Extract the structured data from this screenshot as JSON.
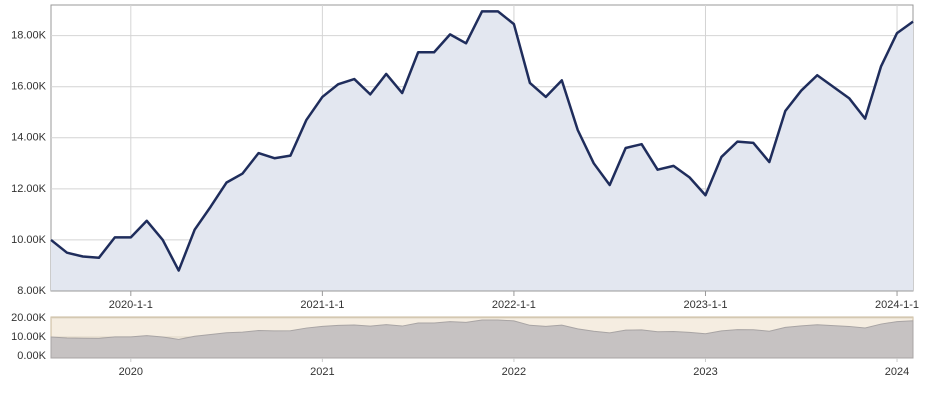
{
  "chart_data": {
    "type": "area",
    "x": [
      "2019-8-1",
      "2019-9-1",
      "2019-10-1",
      "2019-11-1",
      "2019-12-1",
      "2020-1-1",
      "2020-2-1",
      "2020-3-1",
      "2020-4-1",
      "2020-5-1",
      "2020-6-1",
      "2020-7-1",
      "2020-8-1",
      "2020-9-1",
      "2020-10-1",
      "2020-11-1",
      "2020-12-1",
      "2021-1-1",
      "2021-2-1",
      "2021-3-1",
      "2021-4-1",
      "2021-5-1",
      "2021-6-1",
      "2021-7-1",
      "2021-8-1",
      "2021-9-1",
      "2021-10-1",
      "2021-11-1",
      "2021-12-1",
      "2022-1-1",
      "2022-2-1",
      "2022-3-1",
      "2022-4-1",
      "2022-5-1",
      "2022-6-1",
      "2022-7-1",
      "2022-8-1",
      "2022-9-1",
      "2022-10-1",
      "2022-11-1",
      "2022-12-1",
      "2023-1-1",
      "2023-2-1",
      "2023-3-1",
      "2023-4-1",
      "2023-5-1",
      "2023-6-1",
      "2023-7-1",
      "2023-8-1",
      "2023-9-1",
      "2023-10-1",
      "2023-11-1",
      "2023-12-1",
      "2024-1-1",
      "2024-2-1"
    ],
    "values": [
      10000,
      9500,
      9350,
      9300,
      10100,
      10100,
      10750,
      10000,
      8800,
      10400,
      11300,
      12250,
      12600,
      13400,
      13200,
      13300,
      14700,
      15600,
      16100,
      16300,
      15700,
      16500,
      15750,
      17350,
      17350,
      18050,
      17700,
      18950,
      18950,
      18450,
      16150,
      15600,
      16250,
      14300,
      13000,
      12150,
      13600,
      13750,
      12750,
      12900,
      12450,
      11750,
      13250,
      13850,
      13800,
      13050,
      15050,
      15850,
      16450,
      16000,
      15550,
      14750,
      16800,
      18100,
      18550
    ],
    "color": "#1f2d5c",
    "fill": "#e3e7f0",
    "ylim": [
      8000,
      19200
    ],
    "yticks": [
      {
        "value": 8000,
        "label": "8.00K"
      },
      {
        "value": 10000,
        "label": "10.00K"
      },
      {
        "value": 12000,
        "label": "12.00K"
      },
      {
        "value": 14000,
        "label": "14.00K"
      },
      {
        "value": 16000,
        "label": "16.00K"
      },
      {
        "value": 18000,
        "label": "18.00K"
      }
    ],
    "xticks": [
      "2020-1-1",
      "2021-1-1",
      "2022-1-1",
      "2023-1-1",
      "2024-1-1"
    ],
    "grid": true,
    "navigator": {
      "ylim": [
        -1000,
        20500
      ],
      "fill": "#c6c2c2",
      "background": "#f5ede1",
      "yticks": [
        {
          "value": 0,
          "label": "0.00K"
        },
        {
          "value": 10000,
          "label": "10.00K"
        },
        {
          "value": 20000,
          "label": "20.00K"
        }
      ],
      "xticks": [
        {
          "value": "2020-1-1",
          "label": "2020"
        },
        {
          "value": "2021-1-1",
          "label": "2021"
        },
        {
          "value": "2022-1-1",
          "label": "2022"
        },
        {
          "value": "2023-1-1",
          "label": "2023"
        },
        {
          "value": "2024-1-1",
          "label": "2024"
        }
      ]
    }
  }
}
